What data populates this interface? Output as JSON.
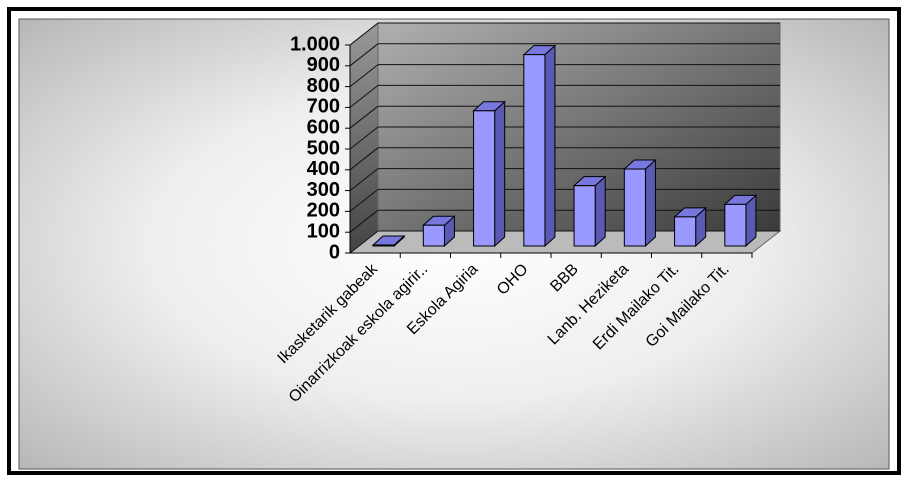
{
  "chart_data": {
    "type": "bar3d",
    "categories": [
      "Ikasketarik gabeak",
      "Oinarrizkoak eskola agirir..",
      "Eskola Agiria",
      "OHO",
      "BBB",
      "Lanb. Heziketa",
      "Erdi Mailako Tit.",
      "Goi Mailako Tit."
    ],
    "values": [
      5,
      100,
      650,
      920,
      290,
      370,
      140,
      200
    ],
    "color": "#9999ff",
    "ylim": [
      0,
      1000
    ],
    "yticks": [
      0,
      100,
      200,
      300,
      400,
      500,
      600,
      700,
      800,
      900,
      {
        "value": 1000,
        "label": "1.000"
      }
    ],
    "grid": true
  }
}
